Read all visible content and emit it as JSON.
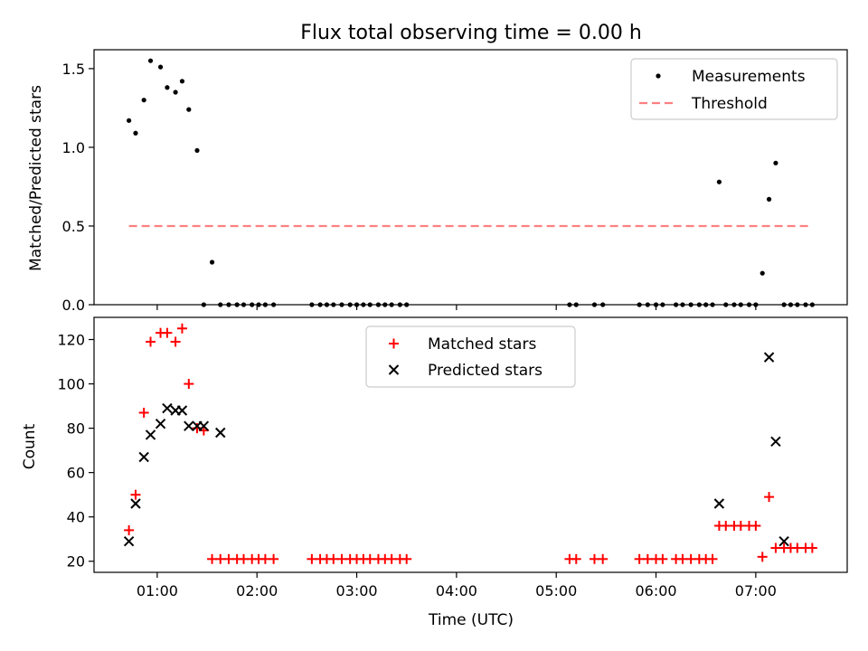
{
  "chart_data": [
    {
      "type": "scatter",
      "title": "Flux total observing time = 0.00 h",
      "ylabel": "Matched/Predicted stars",
      "xlabel": "",
      "ylim": [
        0,
        1.62
      ],
      "y_ticks": [
        0,
        0.5,
        1.0,
        1.5
      ],
      "y_tick_labels": [
        "0.0",
        "0.5",
        "1.0",
        "1.5"
      ],
      "legend": {
        "placement": "upper right",
        "entries": [
          "Measurements",
          "Threshold"
        ]
      },
      "series": [
        {
          "name": "Measurements",
          "marker": "dot",
          "color": "#000000",
          "x": [
            "00:43",
            "00:47",
            "00:52",
            "00:56",
            "01:02",
            "01:06",
            "01:11",
            "01:15",
            "01:19",
            "01:24",
            "01:28",
            "01:33",
            "01:38",
            "01:43",
            "01:48",
            "01:52",
            "01:57",
            "02:01",
            "02:05",
            "02:10",
            "02:33",
            "02:38",
            "02:42",
            "02:46",
            "02:51",
            "02:56",
            "03:00",
            "03:04",
            "03:08",
            "03:13",
            "03:17",
            "03:21",
            "03:26",
            "03:30",
            "05:08",
            "05:12",
            "05:23",
            "05:28",
            "05:50",
            "05:55",
            "06:00",
            "06:04",
            "06:12",
            "06:16",
            "06:21",
            "06:26",
            "06:30",
            "06:34",
            "06:38",
            "06:42",
            "06:47",
            "06:51",
            "06:56",
            "07:00",
            "07:04",
            "07:08",
            "07:12",
            "07:17",
            "07:21",
            "07:25",
            "07:30",
            "07:34"
          ],
          "y": [
            1.17,
            1.09,
            1.3,
            1.55,
            1.51,
            1.38,
            1.35,
            1.42,
            1.24,
            0.98,
            0,
            0.27,
            0,
            0,
            0,
            0,
            0,
            0,
            0,
            0,
            0,
            0,
            0,
            0,
            0,
            0,
            0,
            0,
            0,
            0,
            0,
            0,
            0,
            0,
            0,
            0,
            0,
            0,
            0,
            0,
            0,
            0,
            0,
            0,
            0,
            0,
            0,
            0,
            0.78,
            0,
            0,
            0,
            0,
            0,
            0.2,
            0.67,
            0.9,
            0,
            0,
            0,
            0,
            0
          ]
        },
        {
          "name": "Threshold",
          "marker": "dashed-line",
          "color": "#ff8080",
          "x": [
            "00:43",
            "07:34"
          ],
          "y": [
            0.5,
            0.5
          ]
        }
      ]
    },
    {
      "type": "scatter",
      "title": "",
      "ylabel": "Count",
      "xlabel": "Time (UTC)",
      "ylim": [
        15,
        130
      ],
      "y_ticks": [
        20,
        40,
        60,
        80,
        100,
        120
      ],
      "y_tick_labels": [
        "20",
        "40",
        "60",
        "80",
        "100",
        "120"
      ],
      "x_tick_labels": [
        "01:00",
        "02:00",
        "03:00",
        "04:00",
        "05:00",
        "06:00",
        "07:00"
      ],
      "xlim": [
        "00:22",
        "07:55"
      ],
      "legend": {
        "placement": "upper center",
        "entries": [
          "Matched stars",
          "Predicted stars"
        ]
      },
      "series": [
        {
          "name": "Matched stars",
          "marker": "plus",
          "color": "#ff0000",
          "x": [
            "00:43",
            "00:47",
            "00:52",
            "00:56",
            "01:02",
            "01:06",
            "01:11",
            "01:15",
            "01:19",
            "01:24",
            "01:28",
            "01:33",
            "01:38",
            "01:43",
            "01:48",
            "01:52",
            "01:57",
            "02:01",
            "02:05",
            "02:10",
            "02:33",
            "02:38",
            "02:42",
            "02:46",
            "02:51",
            "02:56",
            "03:00",
            "03:04",
            "03:08",
            "03:13",
            "03:17",
            "03:21",
            "03:26",
            "03:30",
            "05:08",
            "05:12",
            "05:23",
            "05:28",
            "05:50",
            "05:55",
            "06:00",
            "06:04",
            "06:12",
            "06:16",
            "06:21",
            "06:26",
            "06:30",
            "06:34",
            "06:38",
            "06:42",
            "06:47",
            "06:51",
            "06:56",
            "07:00",
            "07:04",
            "07:08",
            "07:12",
            "07:17",
            "07:21",
            "07:25",
            "07:30",
            "07:34"
          ],
          "y": [
            34,
            50,
            87,
            119,
            123,
            123,
            119,
            125,
            100,
            80,
            79,
            21,
            21,
            21,
            21,
            21,
            21,
            21,
            21,
            21,
            21,
            21,
            21,
            21,
            21,
            21,
            21,
            21,
            21,
            21,
            21,
            21,
            21,
            21,
            21,
            21,
            21,
            21,
            21,
            21,
            21,
            21,
            21,
            21,
            21,
            21,
            21,
            21,
            36,
            36,
            36,
            36,
            36,
            36,
            22,
            49,
            26,
            26,
            26,
            26,
            26,
            26
          ]
        },
        {
          "name": "Predicted stars",
          "marker": "x",
          "color": "#000000",
          "x": [
            "00:43",
            "00:47",
            "00:52",
            "00:56",
            "01:02",
            "01:06",
            "01:11",
            "01:15",
            "01:19",
            "01:24",
            "01:28",
            "01:38",
            "06:38",
            "07:08",
            "07:12",
            "07:17"
          ],
          "y": [
            29,
            46,
            67,
            77,
            82,
            89,
            88,
            88,
            81,
            81,
            81,
            78,
            46,
            112,
            74,
            29
          ]
        }
      ]
    }
  ]
}
